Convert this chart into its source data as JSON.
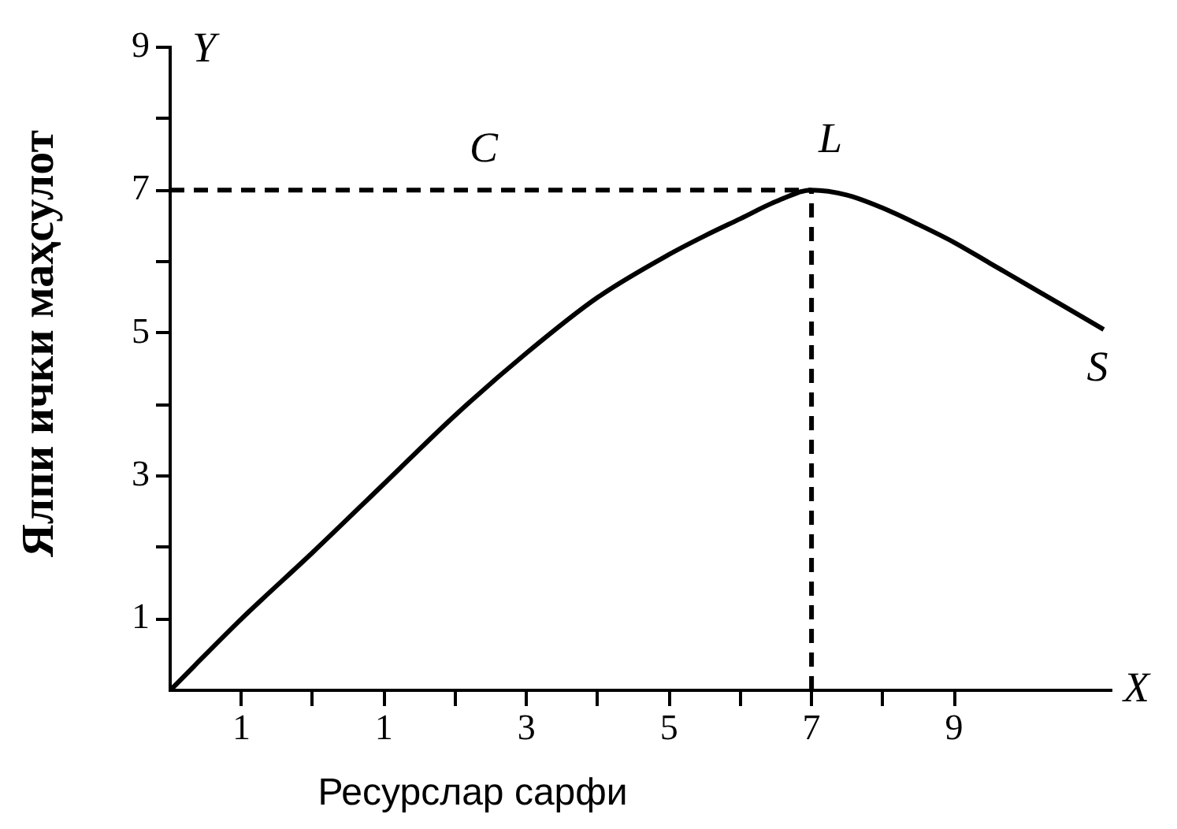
{
  "chart_data": {
    "type": "line",
    "xlabel": "Ресурслар сарфи",
    "ylabel": "Ялпи ички маҳсулот",
    "xlim": [
      -2,
      11.2
    ],
    "ylim": [
      0,
      9
    ],
    "xticks": [
      {
        "value": -1,
        "label": "1"
      },
      {
        "value": 0,
        "label": null
      },
      1,
      {
        "value": 2,
        "label": null
      },
      3,
      {
        "value": 4,
        "label": null
      },
      5,
      {
        "value": 6,
        "label": null
      },
      7,
      {
        "value": 8,
        "label": null
      },
      9
    ],
    "yticks": [
      1,
      {
        "value": 2,
        "label": null
      },
      3,
      {
        "value": 4,
        "label": null
      },
      5,
      {
        "value": 6,
        "label": null
      },
      7,
      {
        "value": 8,
        "label": null
      },
      9
    ],
    "marker": "none",
    "series": [
      {
        "color": "#000000",
        "x": [
          -2,
          -1,
          0,
          1,
          2,
          3,
          4,
          5,
          5.5,
          6,
          6.5,
          7,
          7.5,
          8,
          8.5,
          9,
          9.5,
          10,
          10.5,
          11.1
        ],
        "values": [
          0,
          1.0,
          1.93,
          2.89,
          3.85,
          4.72,
          5.5,
          6.1,
          6.36,
          6.6,
          6.84,
          7.0,
          6.93,
          6.75,
          6.52,
          6.27,
          5.98,
          5.69,
          5.4,
          5.05
        ]
      },
      {
        "color": "#000000",
        "line_style": "dashed",
        "x": [
          -2,
          7
        ],
        "values": [
          7,
          7
        ]
      },
      {
        "color": "#000000",
        "line_style": "dashed",
        "x": [
          7,
          7
        ],
        "values": [
          0,
          7
        ]
      }
    ],
    "annotations": [
      "Y",
      "X",
      {
        "text": "C",
        "x": 2.4,
        "y": 7
      },
      {
        "text": "L",
        "x": 7,
        "y": 7
      },
      {
        "text": "S",
        "x": 11.1,
        "y": 5.05
      }
    ]
  }
}
